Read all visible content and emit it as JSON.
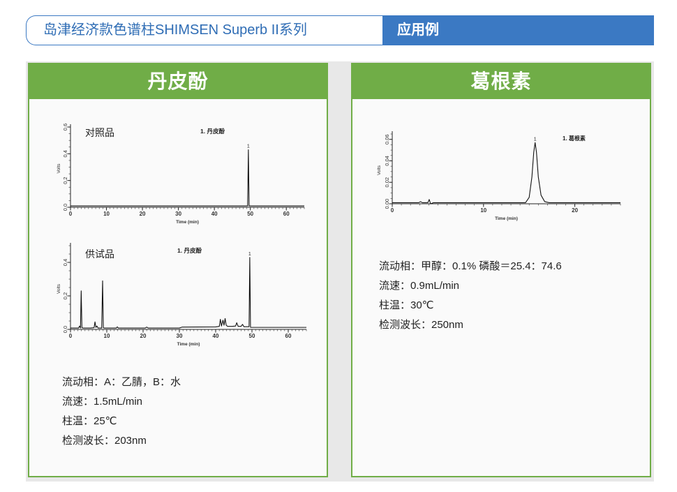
{
  "header": {
    "title": "岛津经济款色谱柱SHIMSEN Superb II系列",
    "section": "应用例"
  },
  "colors": {
    "header_blue": "#3b79c3",
    "title_text": "#2f6db5",
    "card_green": "#70ad47",
    "panel_gray": "#e8e8e8",
    "trace": "#111111"
  },
  "cards": [
    {
      "title": "丹皮酚",
      "conditions": [
        "流动相：A：乙腈，B：水",
        "流速：1.5mL/min",
        "柱温：25℃",
        "检测波长：203nm"
      ]
    },
    {
      "title": "葛根素",
      "conditions": [
        "流动相：甲醇：0.1% 磷酸＝25.4：74.6",
        "流速：0.9mL/min",
        "柱温：30℃",
        "检测波长：250nm"
      ]
    }
  ],
  "chart_data": [
    {
      "type": "line",
      "sample_label": "对照品",
      "annotation": "1. 丹皮酚",
      "xlabel": "Time (min)",
      "ylabel": "Volts",
      "xlim": [
        0,
        65
      ],
      "ylim": [
        0,
        0.6
      ],
      "xticks": [
        0,
        10,
        20,
        30,
        40,
        50,
        60
      ],
      "yticks": [
        "0.0",
        "0.2",
        "0.4",
        "0.6"
      ],
      "grid": false,
      "series": [
        {
          "x": [
            0,
            10,
            20,
            30,
            40,
            49.25,
            49.45,
            49.65,
            55,
            65
          ],
          "y": [
            0.01,
            0.01,
            0.01,
            0.01,
            0.01,
            0.01,
            0.43,
            0.01,
            0.01,
            0.01
          ]
        }
      ],
      "peaks": [
        {
          "label": "1",
          "time": 49.45,
          "height": 0.43
        }
      ]
    },
    {
      "type": "line",
      "sample_label": "供试品",
      "annotation": "1. 丹皮酚",
      "xlabel": "Time (min)",
      "ylabel": "Volts",
      "xlim": [
        0,
        65
      ],
      "ylim": [
        0,
        0.5
      ],
      "xticks": [
        0,
        10,
        20,
        30,
        40,
        50,
        60
      ],
      "yticks": [
        "0.0",
        "0.2",
        "0.4"
      ],
      "grid": false,
      "series": [
        {
          "x": [
            0,
            2.2,
            2.5,
            2.75,
            2.95,
            3.15,
            3.5,
            5.5,
            6.5,
            6.75,
            7.0,
            7.3,
            7.6,
            8.6,
            8.85,
            9.05,
            9.3,
            10.5,
            12.6,
            12.9,
            13.2,
            20.6,
            21.0,
            21.4,
            30.0,
            30.8,
            40.0,
            41.0,
            41.3,
            41.6,
            42.0,
            42.3,
            42.6,
            42.9,
            43.3,
            44.5,
            45.5,
            45.8,
            46.2,
            47.0,
            47.4,
            47.8,
            49.2,
            49.4,
            49.6,
            50.0,
            56.0,
            65.0
          ],
          "y": [
            0.008,
            0.008,
            0.02,
            0.008,
            0.23,
            0.01,
            0.008,
            0.008,
            0.01,
            0.045,
            0.012,
            0.02,
            0.008,
            0.008,
            0.29,
            0.01,
            0.008,
            0.008,
            0.008,
            0.015,
            0.008,
            0.008,
            0.014,
            0.008,
            0.008,
            0.014,
            0.015,
            0.018,
            0.06,
            0.02,
            0.055,
            0.025,
            0.065,
            0.025,
            0.018,
            0.018,
            0.02,
            0.04,
            0.018,
            0.018,
            0.03,
            0.016,
            0.016,
            0.43,
            0.012,
            0.012,
            0.012,
            0.012
          ]
        }
      ],
      "peaks": [
        {
          "label": "1",
          "time": 49.4,
          "height": 0.43
        }
      ]
    },
    {
      "type": "line",
      "sample_label": "",
      "annotation": "1. 葛根素",
      "xlabel": "Time (min)",
      "ylabel": "Volts",
      "xlim": [
        0,
        25
      ],
      "ylim": [
        0,
        0.065
      ],
      "xticks": [
        0,
        10,
        20
      ],
      "yticks": [
        "0.00",
        "0.02",
        "0.04",
        "0.06"
      ],
      "grid": false,
      "series": [
        {
          "x": [
            0,
            2.9,
            3.1,
            3.3,
            3.9,
            4.05,
            4.2,
            4.5,
            8.5,
            14.6,
            15.0,
            15.3,
            15.5,
            15.65,
            15.8,
            16.0,
            16.3,
            16.7,
            17.2,
            25
          ],
          "y": [
            0.001,
            0.001,
            0.002,
            0.001,
            0.001,
            0.004,
            0.0,
            0.001,
            0.001,
            0.001,
            0.006,
            0.025,
            0.048,
            0.057,
            0.048,
            0.025,
            0.008,
            0.002,
            0.001,
            0.001
          ]
        }
      ],
      "peaks": [
        {
          "label": "1",
          "time": 15.65,
          "height": 0.057
        }
      ]
    }
  ]
}
